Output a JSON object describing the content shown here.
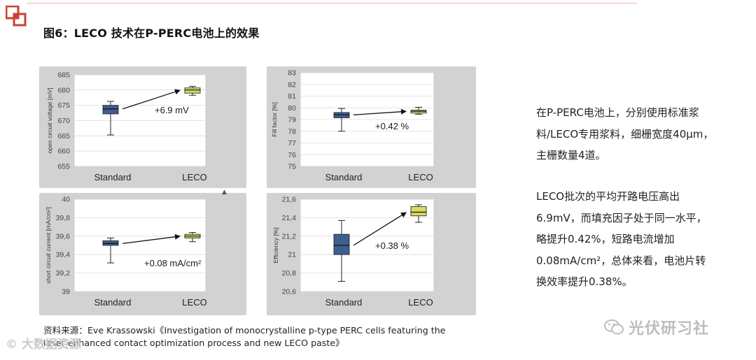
{
  "figure_title": "图6：LECO 技术在P-PERC电池上的效果",
  "side_text": {
    "para1": [
      "在P-PERC电池上，分别使用标准浆",
      "料/LECO专用浆料，细栅宽度40μm，",
      "主栅数量4道。"
    ],
    "para2": [
      "LECO批次的平均开路电压高出",
      "6.9mV，而填充因子处于同一水平，",
      "略提升0.42%，短路电流增加",
      "0.08mA/cm²，总体来看，电池片转",
      "换效率提升0.38%。"
    ]
  },
  "source_lines": [
    "资料来源：Eve Krassowski《Investigation of monocrystalline p-type PERC cells featuring the",
    "laser enhanced contact optimization process and new LECO paste》"
  ],
  "watermark_left": "© 大数据资源",
  "watermark_right": "光伏研习社",
  "stray_mark": "▲",
  "colors": {
    "standard_box": "#3d5f8f",
    "leco_box": "#d8dc60",
    "arrow": "#111111"
  },
  "chart_data": [
    {
      "type": "box",
      "ylabel": "open circuit voltage [mV]",
      "categories": [
        "Standard",
        "LECO"
      ],
      "ylim": [
        655,
        685
      ],
      "yticks": [
        655,
        660,
        665,
        670,
        675,
        680,
        685
      ],
      "ytick_labels": [
        "655",
        "660",
        "665",
        "670",
        "675",
        "680",
        "685"
      ],
      "boxes": [
        {
          "category": "Standard",
          "min": 665.3,
          "q1": 672.2,
          "median": 673.8,
          "q3": 675.0,
          "max": 676.3
        },
        {
          "category": "LECO",
          "min": 678.3,
          "q1": 679.0,
          "median": 680.0,
          "q3": 680.7,
          "max": 681.2
        }
      ],
      "annotation": "+6.9 mV"
    },
    {
      "type": "box",
      "ylabel": "Fill factor [%]",
      "categories": [
        "Standard",
        "LECO"
      ],
      "ylim": [
        75,
        83
      ],
      "yticks": [
        75,
        76,
        77,
        78,
        79,
        80,
        81,
        82,
        83
      ],
      "ytick_labels": [
        "75",
        "76",
        "77",
        "78",
        "79",
        "80",
        "81",
        "82",
        "83"
      ],
      "boxes": [
        {
          "category": "Standard",
          "min": 78.0,
          "q1": 79.15,
          "median": 79.4,
          "q3": 79.6,
          "max": 79.95
        },
        {
          "category": "LECO",
          "min": 79.45,
          "q1": 79.55,
          "median": 79.7,
          "q3": 79.8,
          "max": 80.05
        }
      ],
      "annotation": "+0.42 %"
    },
    {
      "type": "box",
      "ylabel": "short circuit current [mA/cm²]",
      "categories": [
        "Standard",
        "LECO"
      ],
      "ylim": [
        39.0,
        40.0
      ],
      "yticks": [
        39.0,
        39.2,
        39.4,
        39.6,
        39.8,
        40.0
      ],
      "ytick_labels": [
        "39",
        "39,2",
        "39,4",
        "39,6",
        "39,8",
        "40"
      ],
      "boxes": [
        {
          "category": "Standard",
          "min": 39.31,
          "q1": 39.5,
          "median": 39.52,
          "q3": 39.55,
          "max": 39.58
        },
        {
          "category": "LECO",
          "min": 39.54,
          "q1": 39.58,
          "median": 39.6,
          "q3": 39.62,
          "max": 39.64
        }
      ],
      "annotation": "+0.08 mA/cm²"
    },
    {
      "type": "box",
      "ylabel": "Efficiency [%]",
      "categories": [
        "Standard",
        "LECO"
      ],
      "ylim": [
        20.6,
        21.6
      ],
      "yticks": [
        20.6,
        20.8,
        21.0,
        21.2,
        21.4,
        21.6
      ],
      "ytick_labels": [
        "20,6",
        "20,8",
        "21",
        "21,2",
        "21,4",
        "21,6"
      ],
      "boxes": [
        {
          "category": "Standard",
          "min": 20.71,
          "q1": 21.0,
          "median": 21.1,
          "q3": 21.22,
          "max": 21.37
        },
        {
          "category": "LECO",
          "min": 21.35,
          "q1": 21.42,
          "median": 21.46,
          "q3": 21.52,
          "max": 21.54
        }
      ],
      "annotation": "+0.38 %"
    }
  ]
}
